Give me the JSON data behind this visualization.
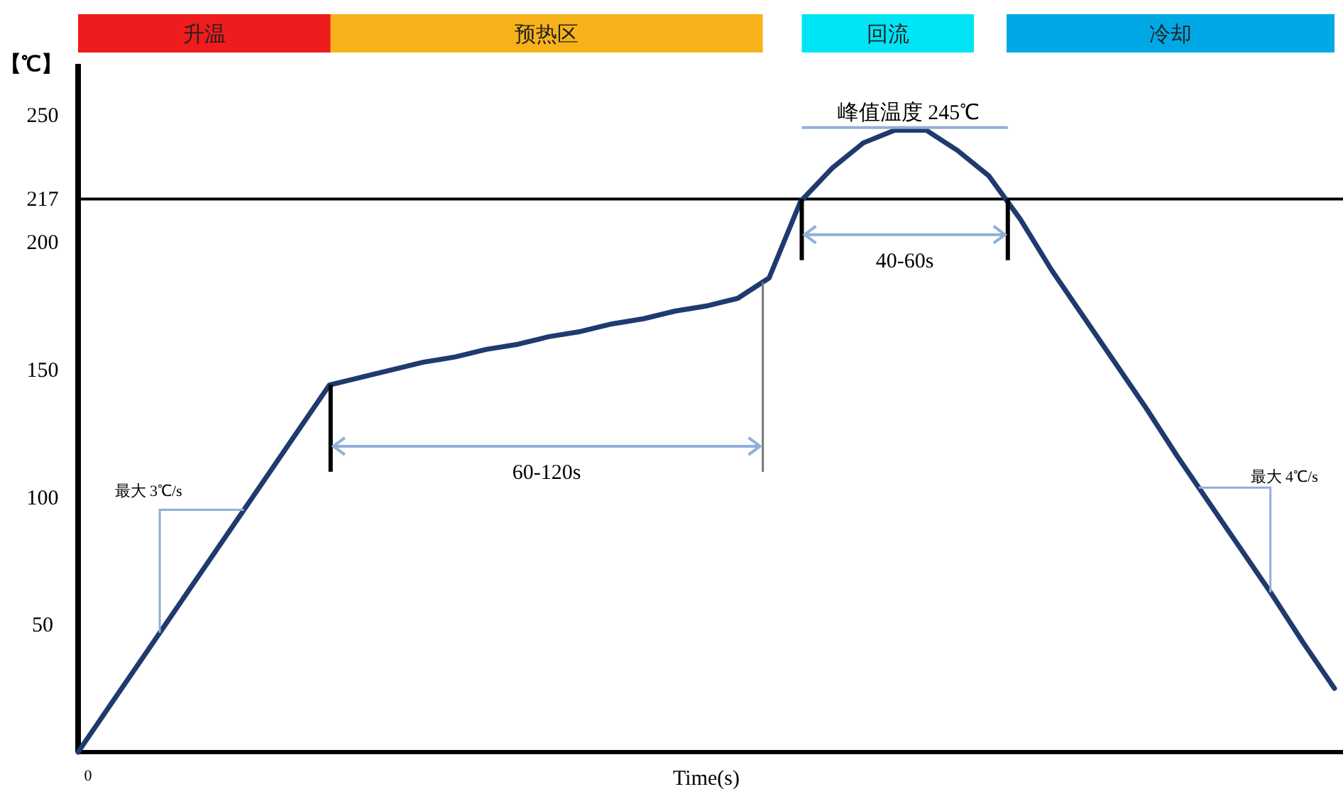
{
  "chart_data": {
    "type": "line",
    "xlabel": "Time(s)",
    "ylabel": "【℃】",
    "categories": [
      null,
      null,
      null,
      null,
      null,
      null,
      null,
      null,
      null,
      null,
      null,
      null,
      null,
      null,
      null,
      null,
      null,
      null,
      null,
      null,
      null,
      null,
      null,
      null,
      null,
      null,
      null,
      null,
      null,
      null,
      null,
      null,
      null,
      null,
      null,
      null,
      null,
      null,
      null,
      null,
      null
    ],
    "series": [
      {
        "color": "#1f3a6e",
        "values": [
          0,
          18,
          36,
          54,
          72,
          90,
          108,
          126,
          144,
          147,
          150,
          153,
          155,
          158,
          160,
          163,
          165,
          168,
          170,
          173,
          175,
          178,
          186,
          216,
          229,
          239,
          244,
          244,
          236,
          226,
          209,
          189,
          171,
          153,
          135,
          116,
          98,
          80,
          62,
          43,
          25
        ]
      }
    ],
    "ylim": [
      0,
      270
    ],
    "yticks": [
      50,
      100,
      150,
      200,
      217,
      250
    ],
    "grid": false,
    "marker": "none",
    "line_style": "solid",
    "ref_lines": [
      {
        "axis": "y",
        "value": 217,
        "color": "#000000"
      }
    ],
    "annotations": [
      "升温",
      "预热区",
      "回流",
      "冷却",
      "峰值温度 245℃",
      "0",
      "60-120s",
      "40-60s",
      "最大 3℃/s",
      "最大 4℃/s"
    ]
  }
}
